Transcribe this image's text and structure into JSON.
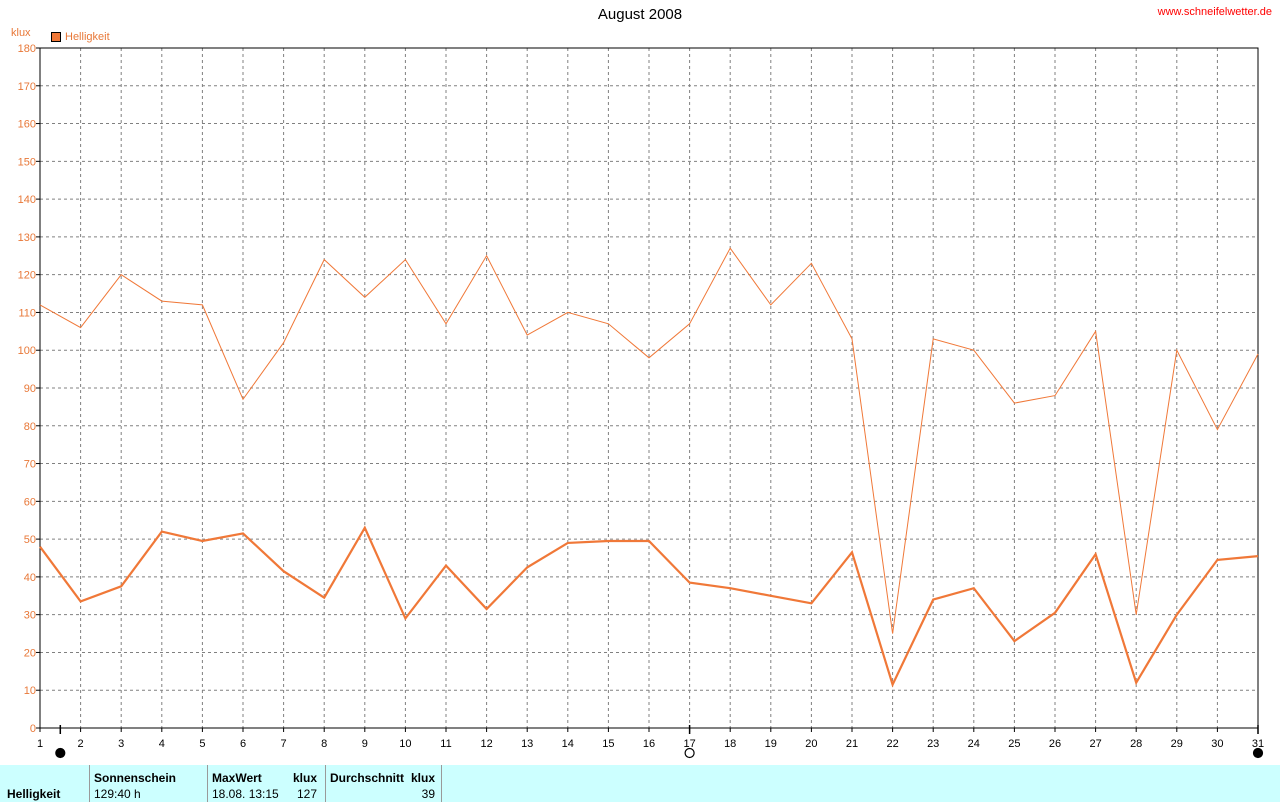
{
  "header": {
    "title": "August 2008",
    "site": "www.schneifelwetter.de",
    "unit": "klux",
    "legend": "Helligkeit"
  },
  "chart_data": {
    "type": "line",
    "title": "August 2008",
    "ylabel": "klux",
    "xlabel": "",
    "x": [
      1,
      2,
      3,
      4,
      5,
      6,
      7,
      8,
      9,
      10,
      11,
      12,
      13,
      14,
      15,
      16,
      17,
      18,
      19,
      20,
      21,
      22,
      23,
      24,
      25,
      26,
      27,
      28,
      29,
      30,
      31
    ],
    "xlim": [
      1,
      31
    ],
    "ylim": [
      0,
      180
    ],
    "yticks": [
      0,
      10,
      20,
      30,
      40,
      50,
      60,
      70,
      80,
      90,
      100,
      110,
      120,
      130,
      140,
      150,
      160,
      170,
      180
    ],
    "grid": true,
    "legend_position": "top-left",
    "series": [
      {
        "name": "Helligkeit",
        "role": "maximum",
        "color": "#f07838",
        "values": [
          112,
          106,
          120,
          113,
          112,
          87,
          102,
          124,
          114,
          124,
          107,
          125,
          104,
          110,
          107,
          98,
          107,
          127,
          112,
          123,
          103,
          25,
          103,
          100,
          86,
          88,
          105,
          30,
          100,
          79,
          99
        ]
      },
      {
        "name": "Helligkeit",
        "role": "average",
        "color": "#f07838",
        "values": [
          48,
          33.5,
          37.5,
          52,
          49.5,
          51.5,
          41.5,
          34.5,
          53,
          29,
          43,
          31.5,
          42.5,
          49,
          49.5,
          49.5,
          38.5,
          37,
          35,
          33,
          46.5,
          11.5,
          34,
          37,
          23,
          30.5,
          46,
          12,
          30,
          44.5,
          45.5
        ]
      }
    ],
    "moon_phases": [
      {
        "day": 1.5,
        "phase": "new"
      },
      {
        "day": 17,
        "phase": "full"
      },
      {
        "day": 31,
        "phase": "new"
      }
    ]
  },
  "footer": {
    "row_label": "Helligkeit",
    "sunshine_label": "Sonnenschein",
    "sunshine_value": "129:40 h",
    "max_label": "MaxWert",
    "max_unit": "klux",
    "max_time": "18.08.  13:15",
    "max_value": "127",
    "avg_label": "Durchschnitt",
    "avg_unit": "klux",
    "avg_value": "39"
  }
}
